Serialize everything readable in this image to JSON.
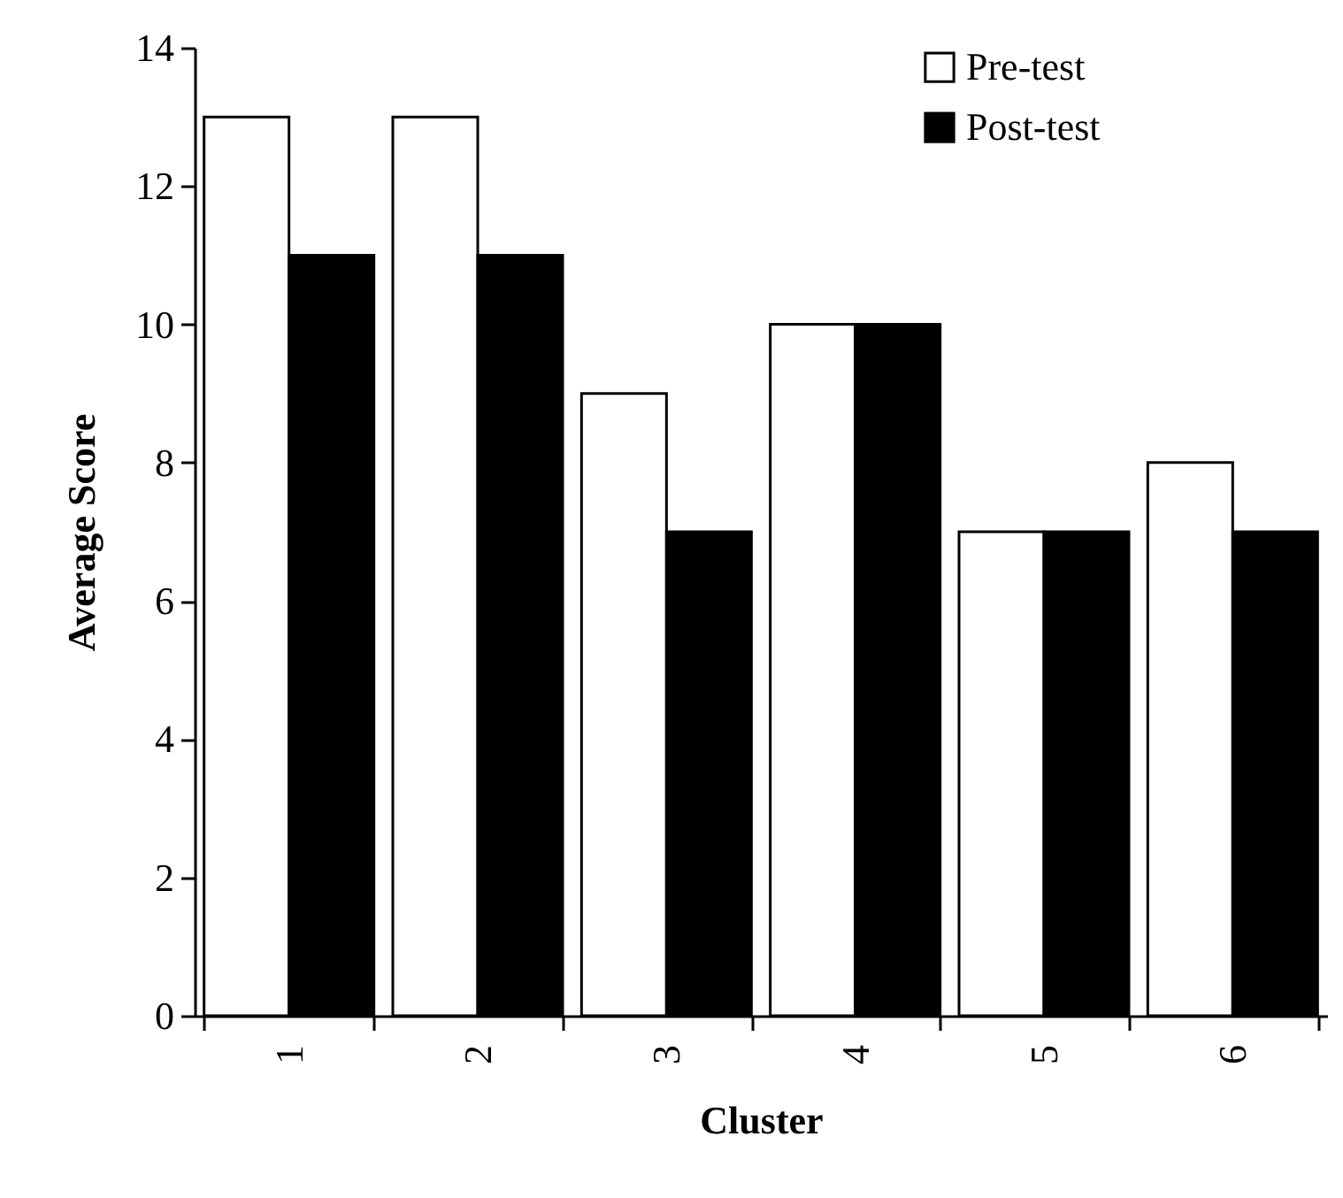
{
  "chart_data": {
    "type": "bar",
    "xlabel": "Cluster",
    "ylabel": "Average Score",
    "categories": [
      "1",
      "2",
      "3",
      "4",
      "5",
      "6"
    ],
    "series": [
      {
        "name": "Pre-test",
        "color": "#ffffff",
        "values": [
          13,
          13,
          9,
          10,
          7,
          8
        ]
      },
      {
        "name": "Post-test",
        "color": "#000000",
        "values": [
          11,
          11,
          7,
          10,
          7,
          7
        ]
      }
    ],
    "ylim": [
      0,
      14
    ],
    "yticks": [
      0,
      2,
      4,
      6,
      8,
      10,
      12,
      14
    ],
    "legend": "top right"
  }
}
